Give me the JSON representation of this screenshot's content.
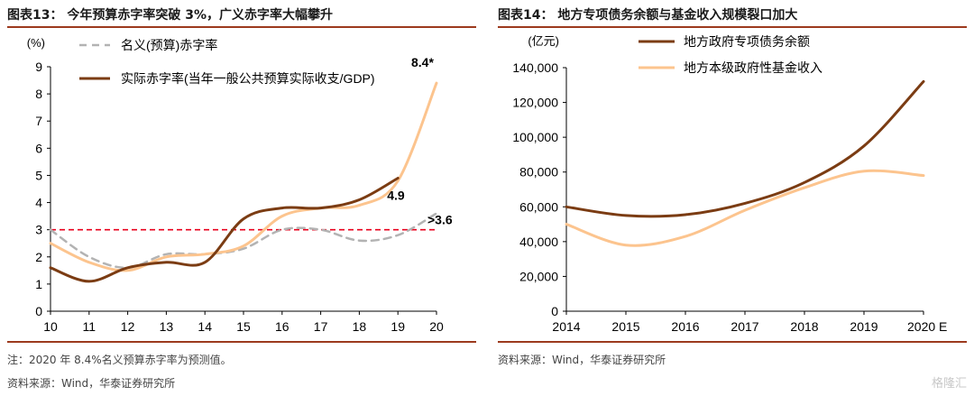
{
  "left": {
    "title": "图表13：  今年预算赤字率突破 3%，广义赤字率大幅攀升",
    "notes": [
      "注：2020 年 8.4%名义预算赤字率为预测值。",
      "资料来源：Wind，华泰证券研究所"
    ]
  },
  "right": {
    "title": "图表14：  地方专项债务余额与基金收入规模裂口加大",
    "notes": [
      "资料来源：Wind，华泰证券研究所"
    ]
  },
  "watermark": "格隆汇",
  "colors": {
    "accent_rule": "#9c3a1e",
    "brown": "#7b3c13",
    "peach": "#fcc48e",
    "gray_dash": "#b3b3b3",
    "ref_red": "#e8001c"
  },
  "chart_data": [
    {
      "type": "line",
      "ylabel": "(%)",
      "xlim": [
        10,
        20
      ],
      "ylim": [
        0,
        9
      ],
      "xticks": [
        "10",
        "11",
        "12",
        "13",
        "14",
        "15",
        "16",
        "17",
        "18",
        "19",
        "20"
      ],
      "yticks": [
        "0",
        "1",
        "2",
        "3",
        "4",
        "5",
        "6",
        "7",
        "8",
        "9"
      ],
      "legend": "top-left",
      "series": [
        {
          "name": "名义(预算)赤字率",
          "style": "dashed",
          "color": "#b3b3b3",
          "x": [
            10,
            11,
            12,
            13,
            14,
            15,
            16,
            17,
            18,
            19,
            20
          ],
          "y": [
            3.0,
            2.0,
            1.6,
            2.1,
            2.1,
            2.3,
            3.0,
            3.0,
            2.6,
            2.8,
            3.6
          ]
        },
        {
          "name": "实际赤字率(当年一般公共预算实际收支/GDP)",
          "style": "solid",
          "color": "#7b3c13",
          "x": [
            10,
            11,
            12,
            13,
            14,
            15,
            16,
            17,
            18,
            19
          ],
          "y": [
            1.6,
            1.1,
            1.6,
            1.8,
            1.8,
            3.4,
            3.8,
            3.8,
            4.1,
            4.9
          ]
        },
        {
          "name": "",
          "style": "solid",
          "color": "#fcc48e",
          "x": [
            10,
            11,
            12,
            13,
            14,
            15,
            16,
            17,
            18,
            19,
            20
          ],
          "y": [
            2.5,
            1.8,
            1.5,
            2.0,
            2.1,
            2.4,
            3.5,
            3.8,
            3.9,
            4.8,
            8.4
          ]
        }
      ],
      "reference_line": {
        "y": 3,
        "color": "#e8001c",
        "style": "dashed"
      },
      "annotations": [
        {
          "text": "8.4*",
          "x": 20,
          "y": 8.4
        },
        {
          "text": "4.9",
          "x": 19,
          "y": 4.9
        },
        {
          "text": ">3.6",
          "x": 20,
          "y": 3.6
        }
      ]
    },
    {
      "type": "line",
      "ylabel": "(亿元)",
      "xlim": [
        2014,
        2020
      ],
      "ylim": [
        0,
        140000
      ],
      "xticks": [
        "2014",
        "2015",
        "2016",
        "2017",
        "2018",
        "2019",
        "2020 E"
      ],
      "yticks": [
        "0",
        "20,000",
        "40,000",
        "60,000",
        "80,000",
        "100,000",
        "120,000",
        "140,000"
      ],
      "legend": "top-left",
      "series": [
        {
          "name": "地方政府专项债务余额",
          "color": "#7b3c13",
          "x": [
            2014,
            2015,
            2016,
            2017,
            2018,
            2019,
            2020
          ],
          "y": [
            60000,
            55000,
            55500,
            62000,
            74000,
            95000,
            132000
          ]
        },
        {
          "name": "地方本级政府性基金收入",
          "color": "#fcc48e",
          "x": [
            2014,
            2015,
            2016,
            2017,
            2018,
            2019,
            2020
          ],
          "y": [
            50000,
            38000,
            43000,
            58000,
            71000,
            80500,
            78000
          ]
        }
      ]
    }
  ]
}
